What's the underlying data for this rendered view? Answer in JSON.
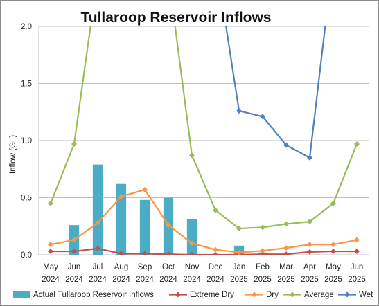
{
  "chart_data": {
    "type": "bar+line",
    "title": "Tullaroop Reservoir Inflows",
    "ylabel": "Inflow (GL)",
    "xlabel": "",
    "ylim": [
      0,
      2.0
    ],
    "yticks": [
      "0.0",
      "0.5",
      "1.0",
      "1.5",
      "2.0"
    ],
    "ytick_values": [
      0,
      0.5,
      1.0,
      1.5,
      2.0
    ],
    "grid": true,
    "legend_position": "bottom",
    "categories": [
      {
        "month": "May",
        "year": "2024"
      },
      {
        "month": "Jun",
        "year": "2024"
      },
      {
        "month": "Jul",
        "year": "2024"
      },
      {
        "month": "Aug",
        "year": "2024"
      },
      {
        "month": "Sep",
        "year": "2024"
      },
      {
        "month": "Oct",
        "year": "2024"
      },
      {
        "month": "Nov",
        "year": "2024"
      },
      {
        "month": "Dec",
        "year": "2024"
      },
      {
        "month": "Jan",
        "year": "2025"
      },
      {
        "month": "Feb",
        "year": "2025"
      },
      {
        "month": "Mar",
        "year": "2025"
      },
      {
        "month": "Apr",
        "year": "2025"
      },
      {
        "month": "May",
        "year": "2025"
      },
      {
        "month": "Jun",
        "year": "2025"
      }
    ],
    "bar_series": {
      "name": "Actual Tullaroop Reservoir Inflows",
      "color": "#4bacc6",
      "values": [
        null,
        0.26,
        0.79,
        0.62,
        0.48,
        0.5,
        0.31,
        null,
        0.08,
        0.02,
        null,
        null,
        null,
        null
      ]
    },
    "line_series": [
      {
        "name": "Extreme Dry",
        "color": "#c0504d",
        "values": [
          0.03,
          0.03,
          0.055,
          0.01,
          0.01,
          0.005,
          0.0,
          0.0,
          0.0,
          0.005,
          0.005,
          0.025,
          0.03,
          0.03
        ]
      },
      {
        "name": "Dry",
        "color": "#f79646",
        "values": [
          0.09,
          0.13,
          0.28,
          0.51,
          0.57,
          0.26,
          0.1,
          0.045,
          0.02,
          0.035,
          0.06,
          0.09,
          0.09,
          0.13
        ]
      },
      {
        "name": "Average",
        "color": "#9bbb59",
        "values": [
          0.45,
          0.97,
          2.45,
          null,
          null,
          2.45,
          0.87,
          0.39,
          0.23,
          0.24,
          0.27,
          0.29,
          0.45,
          0.97
        ]
      },
      {
        "name": "Wet",
        "color": "#4f81bd",
        "values": [
          null,
          null,
          null,
          null,
          null,
          null,
          null,
          2.6,
          1.26,
          1.21,
          0.96,
          0.85,
          2.6,
          null
        ]
      }
    ]
  }
}
